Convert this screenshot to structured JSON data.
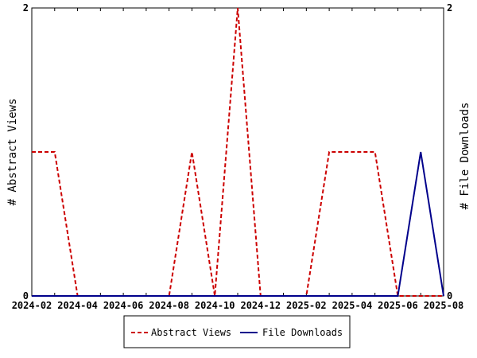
{
  "chart_data": {
    "type": "line",
    "title": "",
    "xlabel": "",
    "ylabel_left": "# Abstract Views",
    "ylabel_right": "# File Downloads",
    "x_ticks": [
      "2024-02",
      "2024-04",
      "2024-06",
      "2024-08",
      "2024-10",
      "2024-12",
      "2025-02",
      "2025-04",
      "2025-06",
      "2025-08"
    ],
    "x": [
      "2024-02",
      "2024-03",
      "2024-04",
      "2024-05",
      "2024-06",
      "2024-07",
      "2024-08",
      "2024-09",
      "2024-10",
      "2024-11",
      "2024-12",
      "2025-01",
      "2025-02",
      "2025-03",
      "2025-04",
      "2025-05",
      "2025-06",
      "2025-07",
      "2025-08"
    ],
    "ylim_left": [
      0,
      2
    ],
    "ylim_right": [
      0,
      2
    ],
    "y_ticks_left": [
      "0",
      "2"
    ],
    "y_ticks_right": [
      "0",
      "2"
    ],
    "grid": false,
    "legend_position": "bottom",
    "series": [
      {
        "name": "Abstract Views",
        "axis": "left",
        "color": "#cc0000",
        "style": "dashed",
        "values": [
          1,
          1,
          0,
          0,
          0,
          0,
          0,
          1,
          0,
          2,
          0,
          0,
          0,
          1,
          1,
          1,
          0,
          0,
          0
        ]
      },
      {
        "name": "File Downloads",
        "axis": "right",
        "color": "#00008b",
        "style": "solid",
        "values": [
          0,
          0,
          0,
          0,
          0,
          0,
          0,
          0,
          0,
          0,
          0,
          0,
          0,
          0,
          0,
          0,
          0,
          1,
          0
        ]
      }
    ]
  }
}
